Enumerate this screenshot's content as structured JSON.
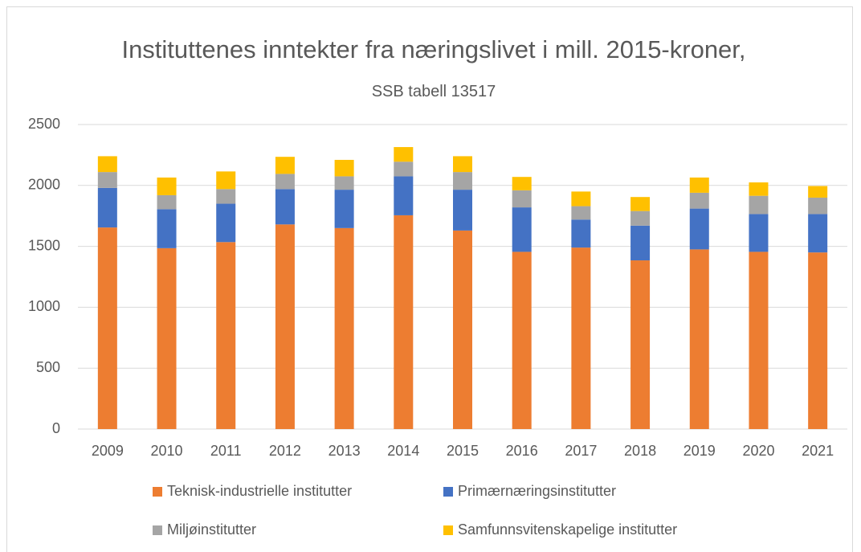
{
  "chart_data": {
    "type": "stacked_bar",
    "title": "Instituttenes inntekter fra næringslivet i mill. 2015-kroner,",
    "subtitle": "SSB tabell 13517",
    "categories": [
      "2009",
      "2010",
      "2011",
      "2012",
      "2013",
      "2014",
      "2015",
      "2016",
      "2017",
      "2018",
      "2019",
      "2020",
      "2021"
    ],
    "series": [
      {
        "name": "Teknisk-industrielle institutter",
        "color": "#ed7d31",
        "values": [
          1655,
          1485,
          1535,
          1680,
          1650,
          1755,
          1630,
          1455,
          1490,
          1385,
          1475,
          1455,
          1450
        ]
      },
      {
        "name": "Primærnæringsinstitutter",
        "color": "#4472c4",
        "values": [
          325,
          320,
          315,
          290,
          315,
          320,
          335,
          365,
          230,
          285,
          335,
          310,
          315
        ]
      },
      {
        "name": "Miljøinstitutter",
        "color": "#a5a5a5",
        "values": [
          130,
          115,
          120,
          125,
          110,
          120,
          145,
          140,
          110,
          120,
          130,
          150,
          135
        ]
      },
      {
        "name": "Samfunnsvitenskapelige institutter",
        "color": "#ffc000",
        "values": [
          130,
          145,
          145,
          140,
          135,
          120,
          130,
          110,
          120,
          115,
          125,
          110,
          95
        ]
      }
    ],
    "ylim": [
      0,
      2500
    ],
    "yticks": [
      0,
      500,
      1000,
      1500,
      2000,
      2500
    ],
    "grid": true,
    "legend": "bottom"
  }
}
